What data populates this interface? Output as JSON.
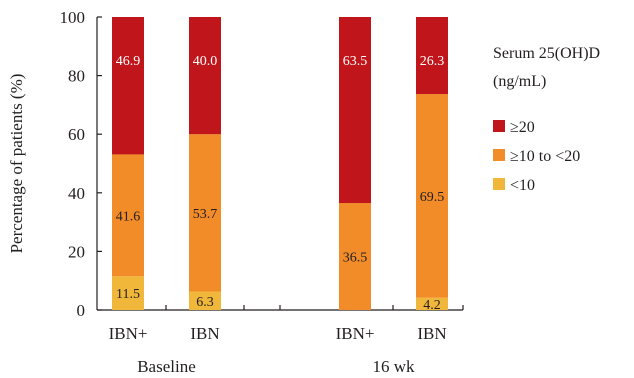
{
  "chart_data": {
    "type": "bar",
    "stacked": true,
    "ylabel": "Percentage of patients (%)",
    "ylim": [
      0,
      100
    ],
    "yticks": [
      0,
      20,
      40,
      60,
      80,
      100
    ],
    "groups": [
      {
        "label": "Baseline",
        "categories": [
          "IBN+",
          "IBN"
        ]
      },
      {
        "label": "16 wk",
        "categories": [
          "IBN+",
          "IBN"
        ]
      }
    ],
    "categories": [
      "IBN+",
      "IBN",
      "IBN+",
      "IBN"
    ],
    "series": [
      {
        "name": "<10",
        "color": "#f0b73a",
        "values": [
          11.5,
          6.3,
          0,
          4.2
        ],
        "labels": [
          "11.5",
          "6.3",
          "",
          "4.2"
        ]
      },
      {
        "name": "≥10 to <20",
        "color": "#f28c28",
        "values": [
          41.6,
          53.7,
          36.5,
          69.5
        ],
        "labels": [
          "41.6",
          "53.7",
          "36.5",
          "69.5"
        ]
      },
      {
        "name": "≥20",
        "color": "#c0161b",
        "values": [
          46.9,
          40.0,
          63.5,
          26.3
        ],
        "labels": [
          "46.9",
          "40.0",
          "63.5",
          "26.3"
        ]
      }
    ],
    "legend": {
      "title_line1": "Serum 25(OH)D",
      "title_line2": "(ng/mL)",
      "placement": "right",
      "order": [
        "≥20",
        "≥10 to <20",
        "<10"
      ]
    },
    "grid": false
  }
}
